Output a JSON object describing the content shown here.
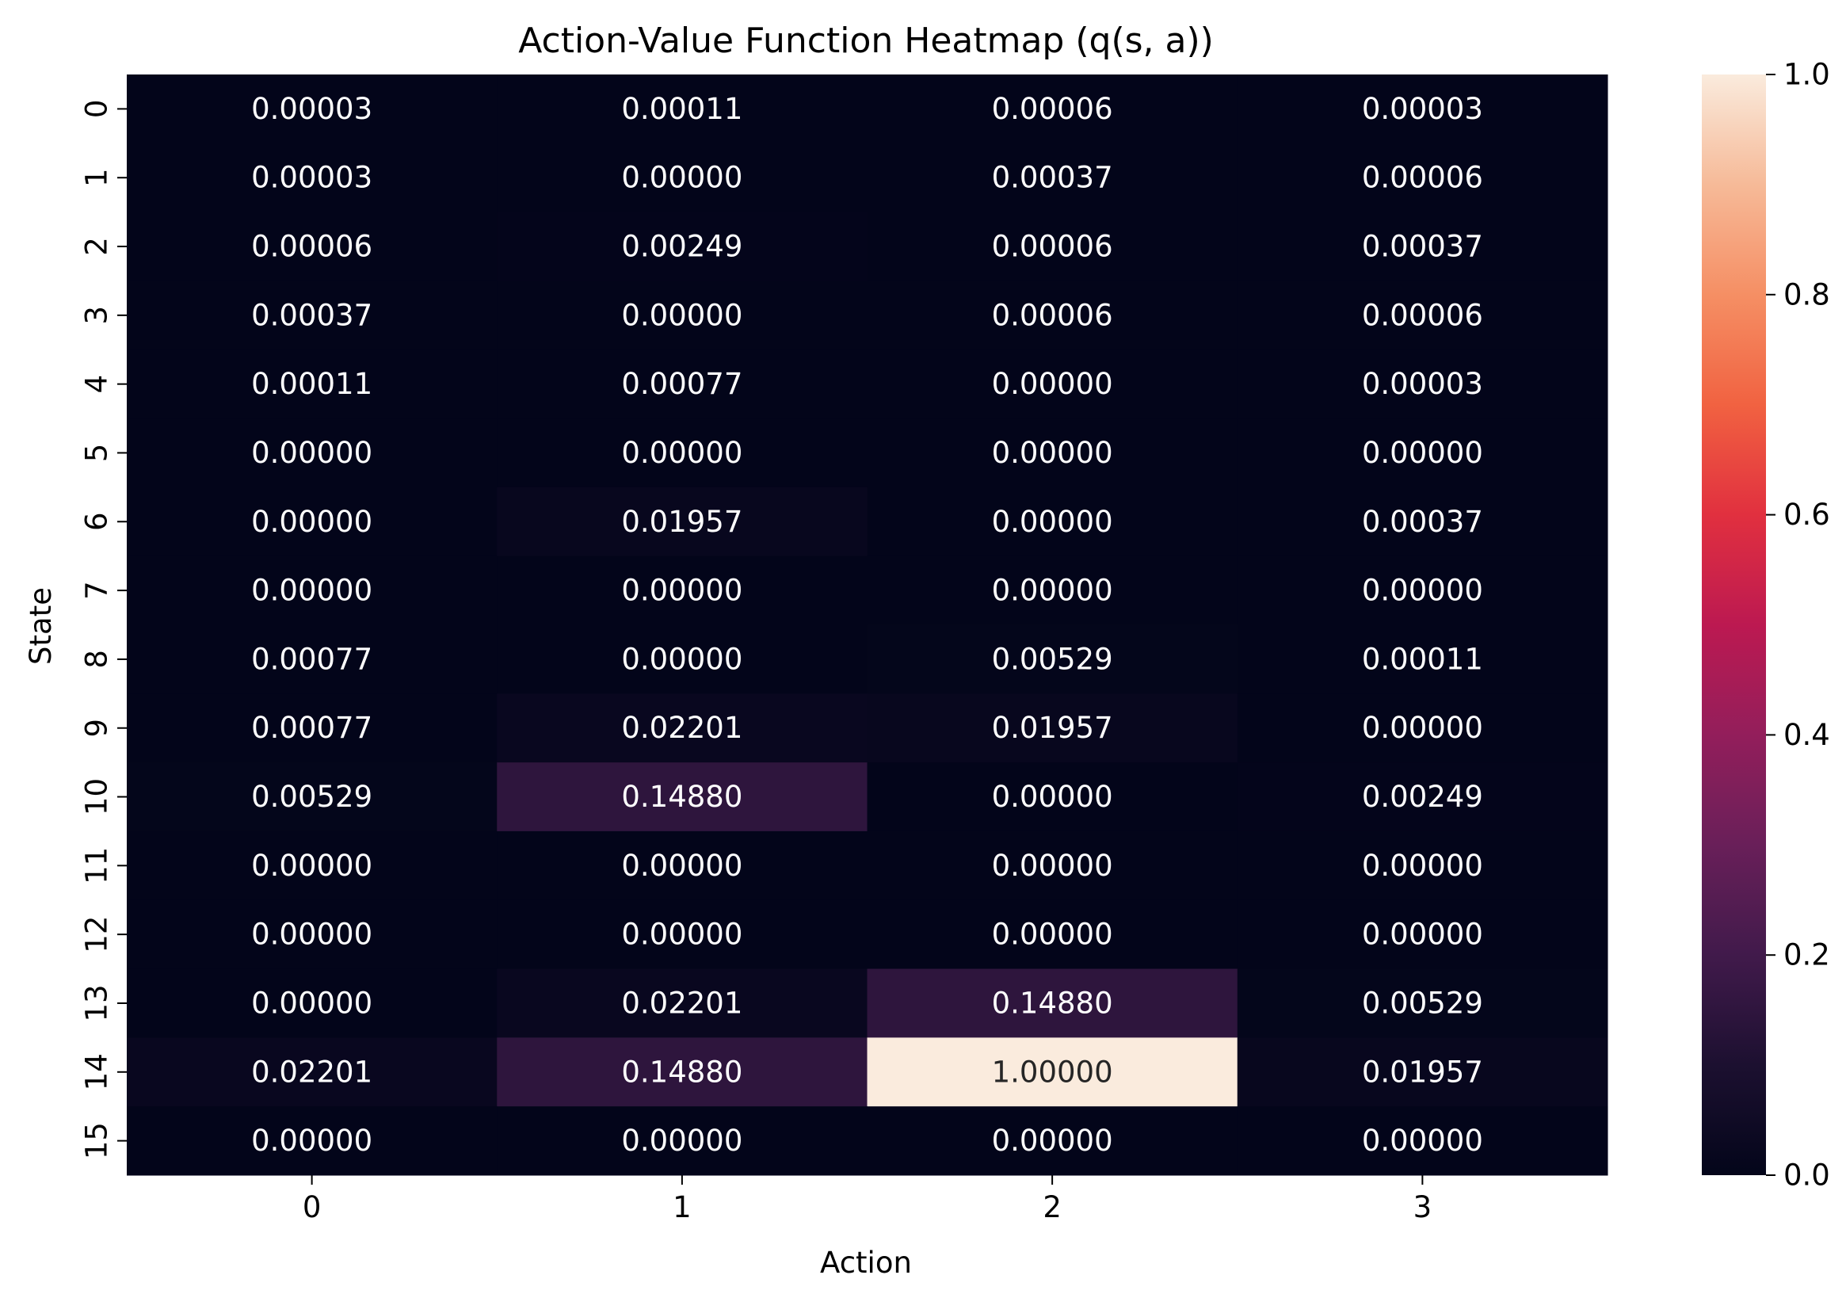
{
  "chart_data": {
    "type": "heatmap",
    "title": "Action-Value Function Heatmap (q(s, a))",
    "xlabel": "Action",
    "ylabel": "State",
    "x_categories": [
      "0",
      "1",
      "2",
      "3"
    ],
    "y_categories": [
      "0",
      "1",
      "2",
      "3",
      "4",
      "5",
      "6",
      "7",
      "8",
      "9",
      "10",
      "11",
      "12",
      "13",
      "14",
      "15"
    ],
    "values": [
      [
        3e-05,
        0.00011,
        6e-05,
        3e-05
      ],
      [
        3e-05,
        0.0,
        0.00037,
        6e-05
      ],
      [
        6e-05,
        0.00249,
        6e-05,
        0.00037
      ],
      [
        0.00037,
        0.0,
        6e-05,
        6e-05
      ],
      [
        0.00011,
        0.00077,
        0.0,
        3e-05
      ],
      [
        0.0,
        0.0,
        0.0,
        0.0
      ],
      [
        0.0,
        0.01957,
        0.0,
        0.00037
      ],
      [
        0.0,
        0.0,
        0.0,
        0.0
      ],
      [
        0.00077,
        0.0,
        0.00529,
        0.00011
      ],
      [
        0.00077,
        0.02201,
        0.01957,
        0.0
      ],
      [
        0.00529,
        0.1488,
        0.0,
        0.00249
      ],
      [
        0.0,
        0.0,
        0.0,
        0.0
      ],
      [
        0.0,
        0.0,
        0.0,
        0.0
      ],
      [
        0.0,
        0.02201,
        0.1488,
        0.00529
      ],
      [
        0.02201,
        0.1488,
        1.0,
        0.01957
      ],
      [
        0.0,
        0.0,
        0.0,
        0.0
      ]
    ],
    "value_format_decimals": 5,
    "colorbar": {
      "range": [
        0.0,
        1.0
      ],
      "ticks": [
        "0.0",
        "0.2",
        "0.4",
        "0.6",
        "0.8",
        "1.0"
      ],
      "colormap": "rocket"
    },
    "grid": false,
    "legend": "colorbar-right"
  }
}
